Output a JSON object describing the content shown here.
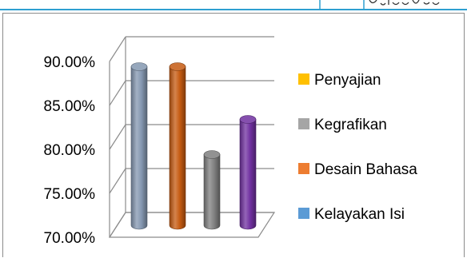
{
  "chart_data": {
    "type": "bar",
    "style": "3d-cylinder",
    "categories": [
      "Kelayakan Isi",
      "Desain Bahasa",
      "Kegrafikan",
      "Penyajian"
    ],
    "values": [
      0.88,
      0.88,
      0.78,
      0.82
    ],
    "bar_colors": [
      "#8497b0",
      "#c55a11",
      "#7f7f7f",
      "#7030a0"
    ],
    "ylim": [
      0.7,
      0.9
    ],
    "y_ticks": [
      "70.00%",
      "75.00%",
      "80.00%",
      "85.00%",
      "90.00%"
    ],
    "grid": true,
    "legend_position": "right",
    "legend": [
      {
        "label": "Penyajian",
        "color": "#ffc000"
      },
      {
        "label": "Kegrafikan",
        "color": "#a5a5a5"
      },
      {
        "label": "Desain Bahasa",
        "color": "#ed7d31"
      },
      {
        "label": "Kelayakan Isi",
        "color": "#5b9bd5"
      }
    ],
    "title": "",
    "xlabel": "",
    "ylabel": ""
  }
}
